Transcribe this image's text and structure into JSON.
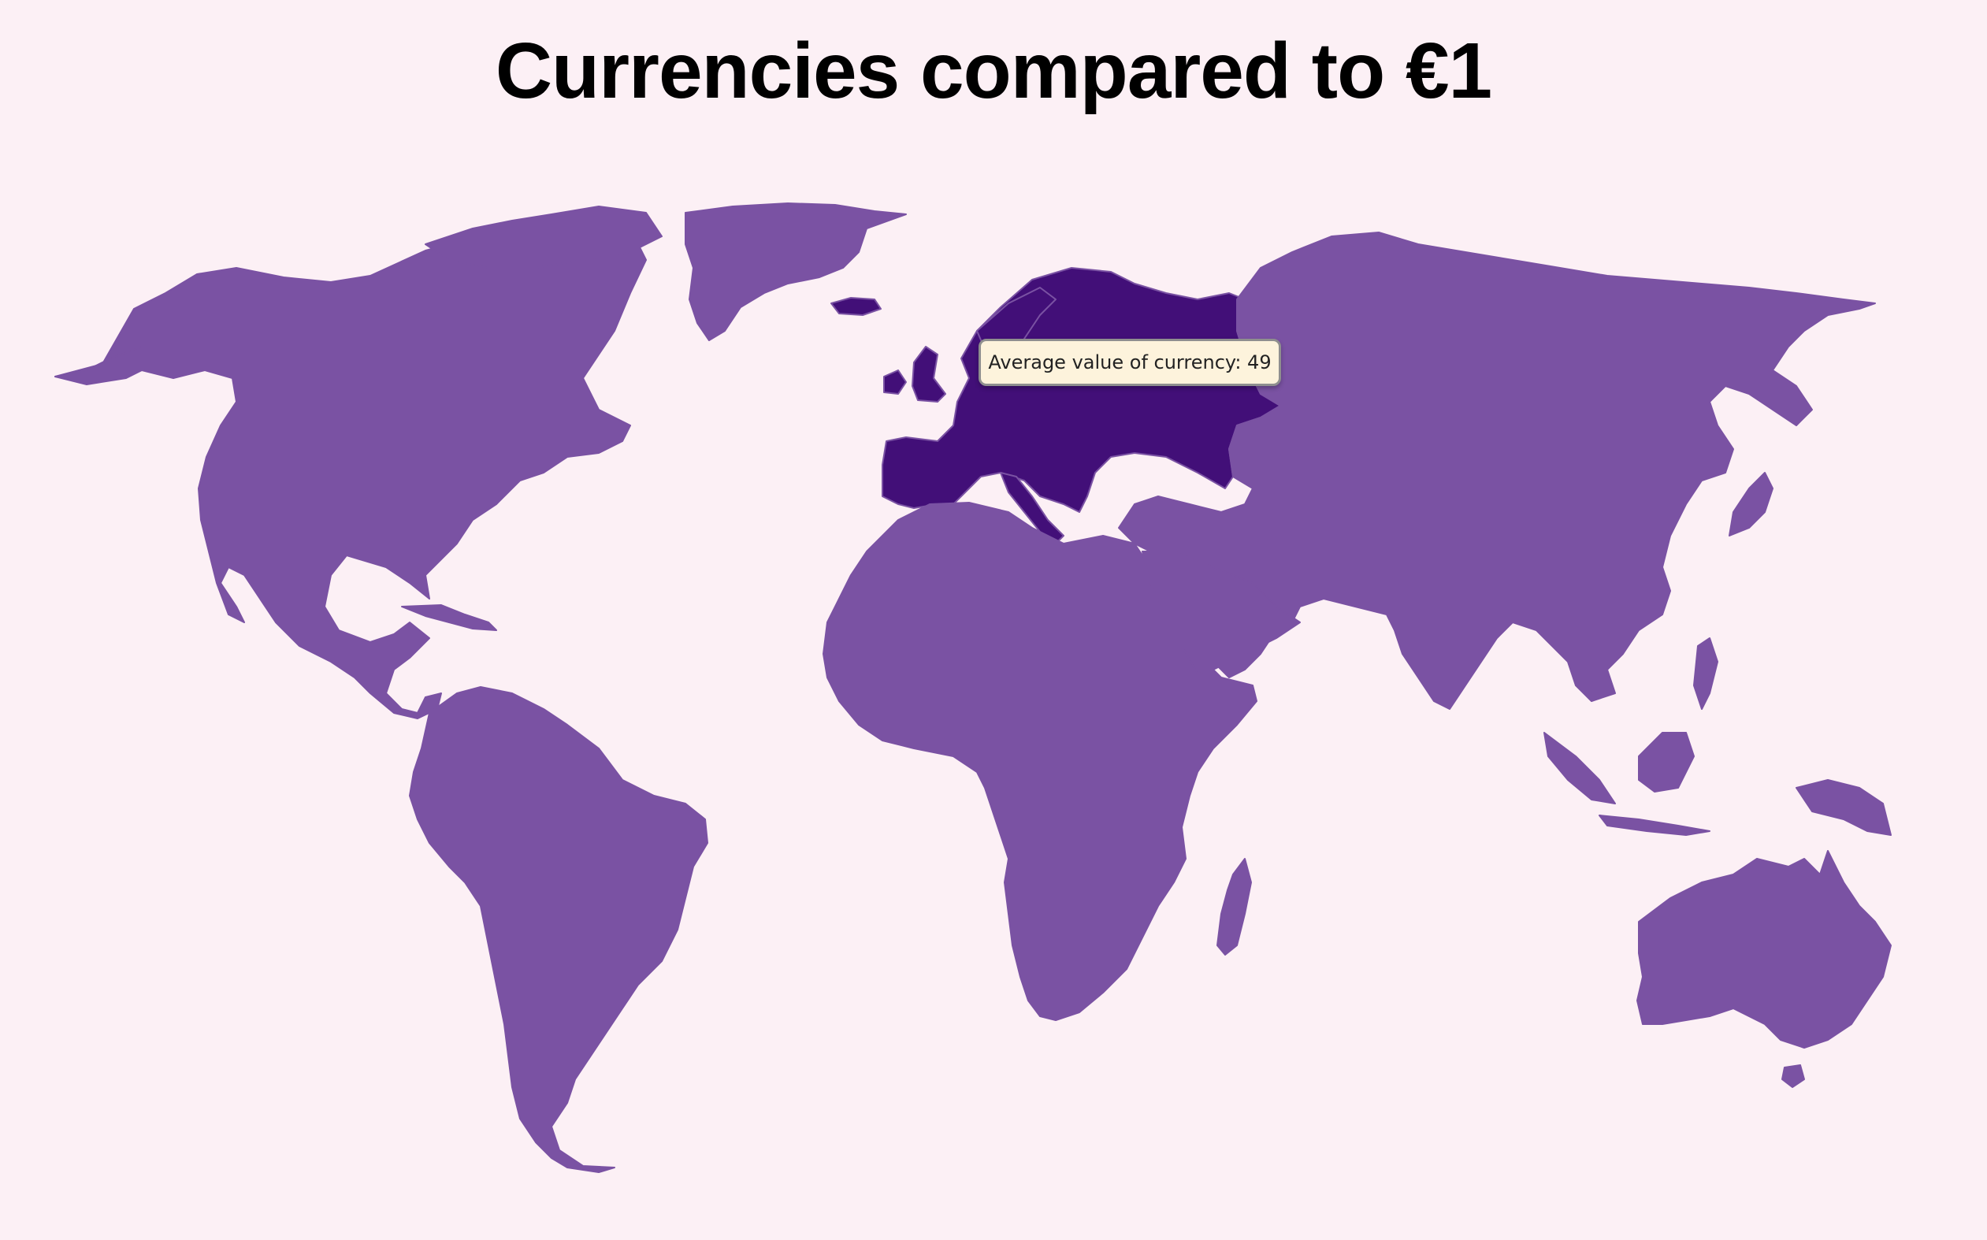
{
  "title": "Currencies compared to €1",
  "legend": {
    "label": "Average value of currency"
  },
  "colors": {
    "background": "#fcf0f5",
    "default_region": "#7a52a3",
    "highlighted_region": "#420f78",
    "tooltip_background": "#fdf3dc",
    "tooltip_border": "#8f8f8f"
  },
  "regions": [
    {
      "name": "North America",
      "highlighted": false
    },
    {
      "name": "Greenland",
      "highlighted": false
    },
    {
      "name": "South America",
      "highlighted": false
    },
    {
      "name": "Europe",
      "highlighted": true,
      "average_currency_value": 49
    },
    {
      "name": "Africa",
      "highlighted": false
    },
    {
      "name": "Asia",
      "highlighted": false
    },
    {
      "name": "Oceania",
      "highlighted": false
    }
  ],
  "tooltip": {
    "region": "Europe",
    "text": "Average value of currency: 49"
  }
}
